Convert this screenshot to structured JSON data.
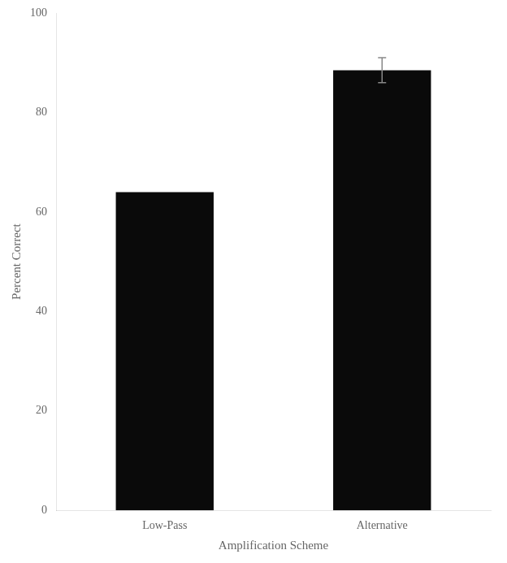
{
  "chart_data": {
    "type": "bar",
    "categories": [
      "Low-Pass",
      "Alternative"
    ],
    "values": [
      64.0,
      88.5
    ],
    "error_bars": [
      0.0,
      2.5
    ],
    "color": "#0a0a0a",
    "xlabel": "Amplification Scheme",
    "ylabel": "Percent Correct",
    "ylim": [
      0,
      100
    ],
    "yticks": [
      0,
      20,
      40,
      60,
      80,
      100
    ],
    "grid": false
  }
}
